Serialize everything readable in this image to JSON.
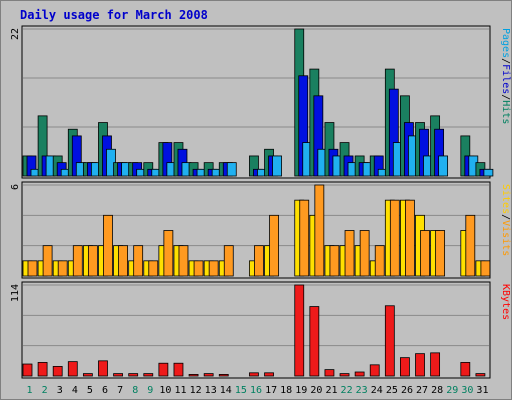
{
  "chart_data": {
    "type": "bar",
    "title": "Daily usage for March 2008",
    "categories": [
      "1",
      "2",
      "3",
      "4",
      "5",
      "6",
      "7",
      "8",
      "9",
      "10",
      "11",
      "12",
      "13",
      "14",
      "15",
      "16",
      "17",
      "18",
      "19",
      "20",
      "21",
      "22",
      "23",
      "24",
      "25",
      "26",
      "27",
      "28",
      "29",
      "30",
      "31"
    ],
    "weekend_days": [
      "1",
      "2",
      "8",
      "9",
      "15",
      "16",
      "22",
      "23",
      "29",
      "30"
    ],
    "panels": [
      {
        "ymax": 22,
        "ymax_label": "22",
        "legend": [
          {
            "text": "Pages",
            "color": "#00a0e0"
          },
          {
            "text": "/",
            "color": "#000000"
          },
          {
            "text": "Files",
            "color": "#0000cc"
          },
          {
            "text": "/",
            "color": "#000000"
          },
          {
            "text": "Hits",
            "color": "#008060"
          }
        ],
        "series": [
          {
            "name": "Hits",
            "color": "#1a8060",
            "values": [
              3,
              9,
              3,
              7,
              2,
              8,
              2,
              2,
              2,
              5,
              5,
              2,
              2,
              2,
              0,
              3,
              4,
              0,
              22,
              16,
              8,
              5,
              3,
              3,
              16,
              12,
              8,
              9,
              0,
              6,
              2
            ]
          },
          {
            "name": "Files",
            "color": "#0010e0",
            "values": [
              3,
              3,
              2,
              6,
              2,
              6,
              2,
              2,
              1,
              5,
              4,
              1,
              1,
              2,
              0,
              1,
              3,
              0,
              15,
              12,
              4,
              3,
              2,
              3,
              13,
              8,
              7,
              7,
              0,
              3,
              1
            ]
          },
          {
            "name": "Pages",
            "color": "#20b0f0",
            "values": [
              1,
              3,
              1,
              2,
              2,
              4,
              2,
              1,
              1,
              2,
              2,
              1,
              1,
              2,
              0,
              1,
              3,
              0,
              5,
              4,
              3,
              2,
              2,
              1,
              5,
              6,
              3,
              3,
              0,
              3,
              1
            ]
          }
        ]
      },
      {
        "ymax": 6,
        "ymax_label": "6",
        "legend": [
          {
            "text": "Sites",
            "color": "#ffcc00"
          },
          {
            "text": "/",
            "color": "#000000"
          },
          {
            "text": "Visits",
            "color": "#ff9900"
          }
        ],
        "series": [
          {
            "name": "Sites",
            "color": "#ffe000",
            "values": [
              1,
              1,
              1,
              1,
              2,
              2,
              2,
              1,
              1,
              2,
              2,
              1,
              1,
              1,
              0,
              1,
              2,
              0,
              5,
              4,
              2,
              2,
              2,
              1,
              5,
              5,
              4,
              3,
              0,
              3,
              1
            ]
          },
          {
            "name": "Visits",
            "color": "#ff9a20",
            "values": [
              1,
              2,
              1,
              2,
              2,
              4,
              2,
              2,
              1,
              3,
              2,
              1,
              1,
              2,
              0,
              2,
              4,
              0,
              5,
              6,
              2,
              3,
              3,
              2,
              5,
              5,
              3,
              3,
              0,
              4,
              1
            ]
          }
        ]
      },
      {
        "ymax": 114,
        "ymax_label": "114",
        "legend": [
          {
            "text": "KBytes",
            "color": "#ff0000"
          }
        ],
        "series": [
          {
            "name": "KBytes",
            "color": "#ee1a1a",
            "values": [
              15,
              17,
              12,
              18,
              3,
              19,
              3,
              3,
              3,
              16,
              16,
              2,
              3,
              2,
              0,
              4,
              4,
              0,
              114,
              87,
              8,
              3,
              5,
              14,
              88,
              23,
              28,
              29,
              0,
              17,
              3
            ]
          }
        ]
      }
    ]
  }
}
